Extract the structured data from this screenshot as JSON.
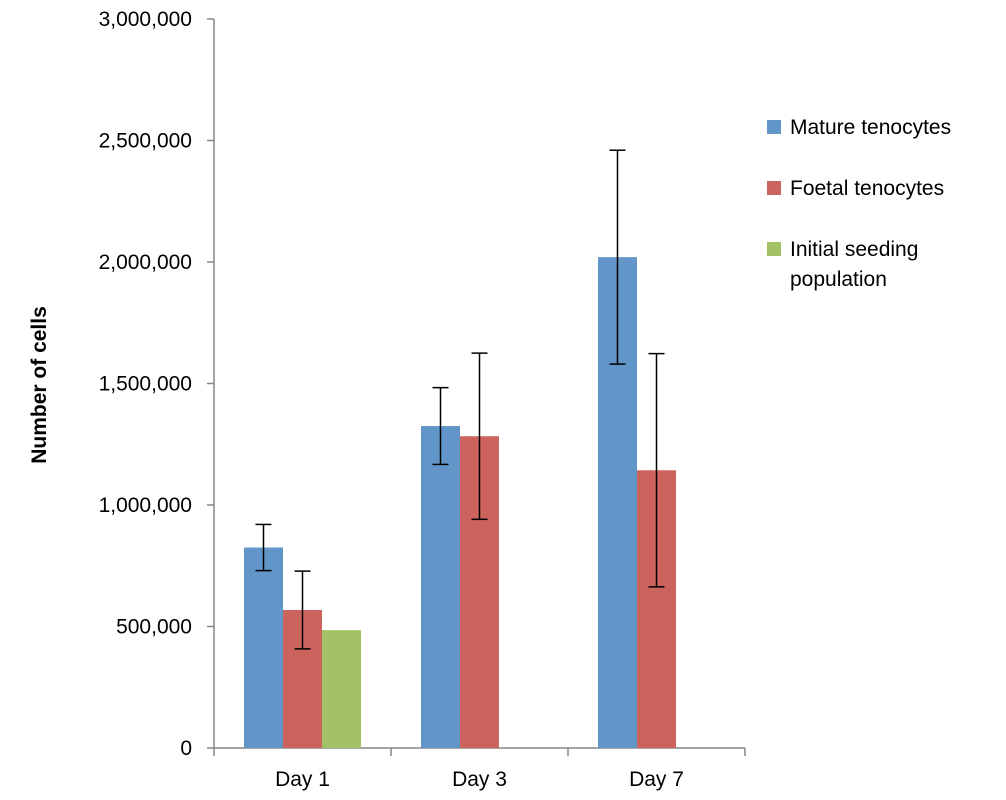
{
  "chart_data": {
    "type": "bar",
    "title": "",
    "xlabel": "",
    "ylabel": "Number of cells",
    "ylim": [
      0,
      3000000
    ],
    "yticks": [
      "0",
      "500,000",
      "1,000,000",
      "1,500,000",
      "2,000,000",
      "2,500,000",
      "3,000,000"
    ],
    "ytick_values": [
      0,
      500000,
      1000000,
      1500000,
      2000000,
      2500000,
      3000000
    ],
    "categories": [
      "Day 1",
      "Day 3",
      "Day 7"
    ],
    "series": [
      {
        "name": "Mature tenocytes",
        "color": "#6296C9",
        "values": [
          825000,
          1325000,
          2020000
        ],
        "error": [
          95000,
          158000,
          440000
        ]
      },
      {
        "name": "Foetal tenocytes",
        "color": "#CC645D",
        "values": [
          568000,
          1283000,
          1143000
        ],
        "error": [
          160000,
          342000,
          480000
        ]
      },
      {
        "name": "Initial seeding population",
        "legend_lines": [
          "Initial seeding",
          "population"
        ],
        "color": "#A3C165",
        "values": [
          485000,
          null,
          null
        ],
        "error": [
          null,
          null,
          null
        ]
      }
    ],
    "grid": false,
    "legend_position": "right"
  }
}
